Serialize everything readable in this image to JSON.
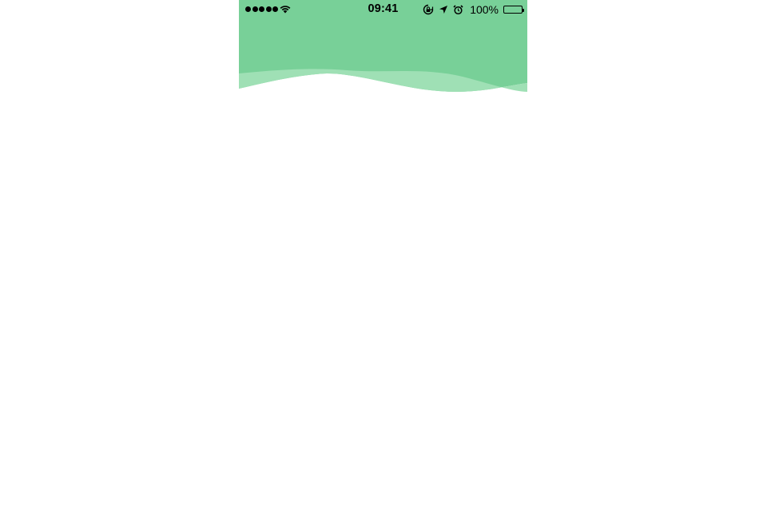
{
  "colors": {
    "header_green": "#78D098",
    "wave_light": "#9FE0B5",
    "background": "#FFFFFF",
    "status_text": "#000000"
  },
  "status_bar": {
    "signal_icon": "cellular-signal-icon",
    "wifi_icon": "wifi-icon",
    "time": "09:41",
    "orientation_lock_icon": "orientation-lock-icon",
    "location_icon": "location-arrow-icon",
    "alarm_icon": "alarm-clock-icon",
    "battery_percent": "100%",
    "battery_icon": "battery-icon",
    "battery_level": 1.0
  }
}
